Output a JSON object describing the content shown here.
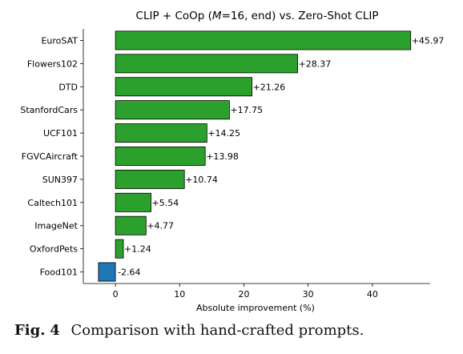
{
  "chart_data": {
    "type": "bar",
    "orientation": "horizontal",
    "title_parts": [
      "CLIP + CoOp (",
      "M",
      "=16, end) vs. Zero-Shot CLIP"
    ],
    "xlabel": "Absolute improvement (%)",
    "ylabel": "",
    "xlim": [
      -5,
      49
    ],
    "xticks": [
      0,
      10,
      20,
      30,
      40
    ],
    "grid": false,
    "categories": [
      "EuroSAT",
      "Flowers102",
      "DTD",
      "StanfordCars",
      "UCF101",
      "FGVCAircraft",
      "SUN397",
      "Caltech101",
      "ImageNet",
      "OxfordPets",
      "Food101"
    ],
    "values": [
      45.97,
      28.37,
      21.26,
      17.75,
      14.25,
      13.98,
      10.74,
      5.54,
      4.77,
      1.24,
      -2.64
    ],
    "value_labels": [
      "+45.97",
      "+28.37",
      "+21.26",
      "+17.75",
      "+14.25",
      "+13.98",
      "+10.74",
      "+5.54",
      "+4.77",
      "+1.24",
      "-2.64"
    ],
    "colors": {
      "positive": "#2ca02c",
      "negative": "#1f77b4",
      "edge": "#000000"
    }
  },
  "caption": {
    "label": "Fig.",
    "number": "4",
    "text": "Comparison with hand-crafted prompts."
  }
}
